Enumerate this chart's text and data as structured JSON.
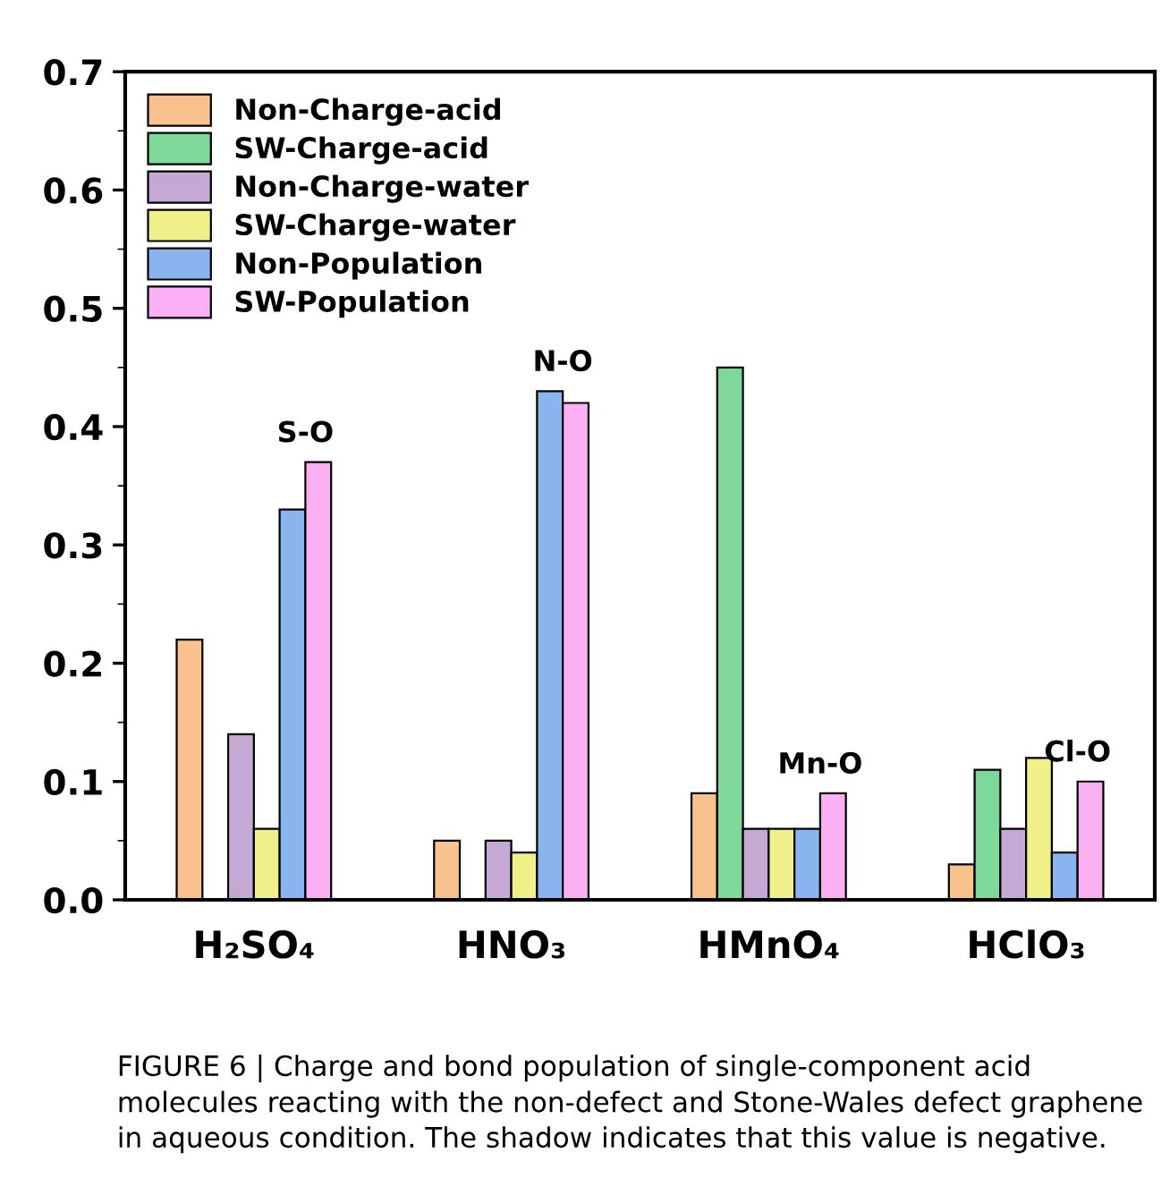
{
  "chart_data": {
    "type": "bar",
    "categories": [
      "H₂SO₄",
      "HNO₃",
      "HMnO₄",
      "HClO₃"
    ],
    "series": [
      {
        "name": "Non-Charge-acid",
        "color": "#f9c18e",
        "values": [
          0.22,
          0.05,
          0.09,
          0.03
        ]
      },
      {
        "name": "SW-Charge-acid",
        "color": "#7fd89a",
        "values": [
          null,
          null,
          0.45,
          0.11
        ]
      },
      {
        "name": "Non-Charge-water",
        "color": "#c3a9d3",
        "values": [
          0.14,
          0.05,
          0.06,
          0.06
        ]
      },
      {
        "name": "SW-Charge-water",
        "color": "#f0f08a",
        "values": [
          0.06,
          0.04,
          0.06,
          0.12
        ]
      },
      {
        "name": "Non-Population",
        "color": "#8ab4ee",
        "values": [
          0.33,
          0.43,
          0.06,
          0.04
        ]
      },
      {
        "name": "SW-Population",
        "color": "#fbb0f4",
        "values": [
          0.37,
          0.42,
          0.09,
          0.1
        ]
      }
    ],
    "ylim": [
      0.0,
      0.7
    ],
    "yticks": [
      {
        "value": 0.0,
        "label": "0.0"
      },
      0.1,
      0.2,
      0.3,
      0.4,
      0.5,
      0.6,
      0.7
    ],
    "legend": "top left",
    "grid": false,
    "annotations": [
      "S-O",
      "N-O",
      "Mn-O",
      "Cl-O",
      "FIGURE 6 | Charge and bond population of single-component acid molecules reacting with the non-defect and Stone-Wales defect graphene in aqueous condition. The shadow indicates that this value is negative."
    ]
  }
}
